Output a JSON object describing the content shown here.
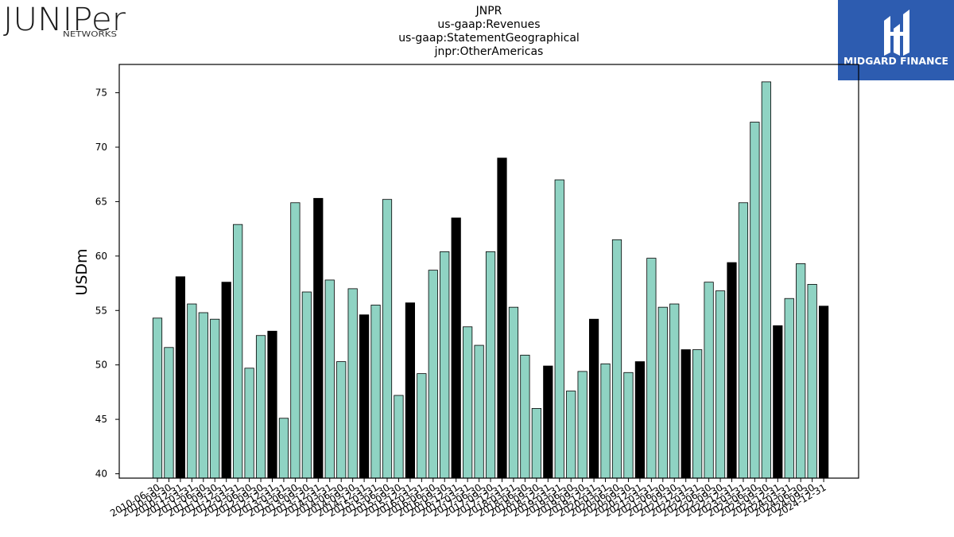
{
  "branding": {
    "left_logo_text": "JUNIPer",
    "left_logo_subtext": "NETWORKS",
    "right_logo_text": "MIDGARD FINANCE",
    "right_logo_bg": "#2d5cb0"
  },
  "chart_data": {
    "type": "bar",
    "title_lines": [
      "JNPR",
      "us-gaap:Revenues",
      "us-gaap:StatementGeographical",
      "jnpr:OtherAmericas"
    ],
    "ylabel": "USDm",
    "xlabel": "",
    "ylim": [
      39.6,
      77.6
    ],
    "yticks": [
      40,
      45,
      50,
      55,
      60,
      65,
      70,
      75
    ],
    "colors": {
      "quarter": "#8fd3c3",
      "year_end": "#000000",
      "edge": "#000000"
    },
    "grid": false,
    "categories": [
      "2010-06-30",
      "2010-09-30",
      "2010-12-31",
      "2011-03-31",
      "2011-06-30",
      "2011-09-30",
      "2011-12-31",
      "2012-03-31",
      "2012-06-30",
      "2012-09-30",
      "2012-12-31",
      "2013-03-31",
      "2013-06-30",
      "2013-09-30",
      "2013-12-31",
      "2014-03-31",
      "2014-06-30",
      "2014-09-30",
      "2014-12-31",
      "2015-03-31",
      "2015-06-30",
      "2015-09-30",
      "2015-12-31",
      "2016-03-31",
      "2016-06-30",
      "2016-09-30",
      "2016-12-31",
      "2017-03-31",
      "2017-06-30",
      "2017-09-30",
      "2017-12-31",
      "2018-03-31",
      "2018-06-30",
      "2018-09-30",
      "2018-12-31",
      "2019-03-31",
      "2019-06-30",
      "2019-09-30",
      "2019-12-31",
      "2020-03-31",
      "2020-06-30",
      "2020-09-30",
      "2020-12-31",
      "2021-03-31",
      "2021-06-30",
      "2021-09-30",
      "2021-12-31",
      "2022-03-31",
      "2022-06-30",
      "2022-09-30",
      "2022-12-31",
      "2023-03-31",
      "2023-06-30",
      "2023-09-30",
      "2023-12-31",
      "2024-03-31",
      "2024-06-30",
      "2024-09-30",
      "2024-12-31"
    ],
    "series": [
      {
        "values": [
          54.3,
          51.6,
          58.1,
          55.6,
          54.8,
          54.2,
          57.6,
          62.9,
          49.7,
          52.7,
          53.1,
          45.1,
          64.9,
          56.7,
          65.3,
          57.8,
          50.3,
          57.0,
          54.6,
          55.5,
          65.2,
          47.2,
          55.7,
          49.2,
          58.7,
          60.4,
          63.5,
          53.5,
          51.8,
          60.4,
          69.0,
          55.3,
          50.9,
          46.0,
          49.9,
          67.0,
          47.6,
          49.4,
          54.2,
          50.1,
          61.5,
          49.3,
          50.3,
          59.8,
          55.3,
          55.6,
          51.4,
          51.4,
          57.6,
          56.8,
          59.4,
          64.9,
          72.3,
          76.0,
          53.6,
          56.1,
          59.3,
          57.4,
          55.4
        ]
      }
    ]
  }
}
